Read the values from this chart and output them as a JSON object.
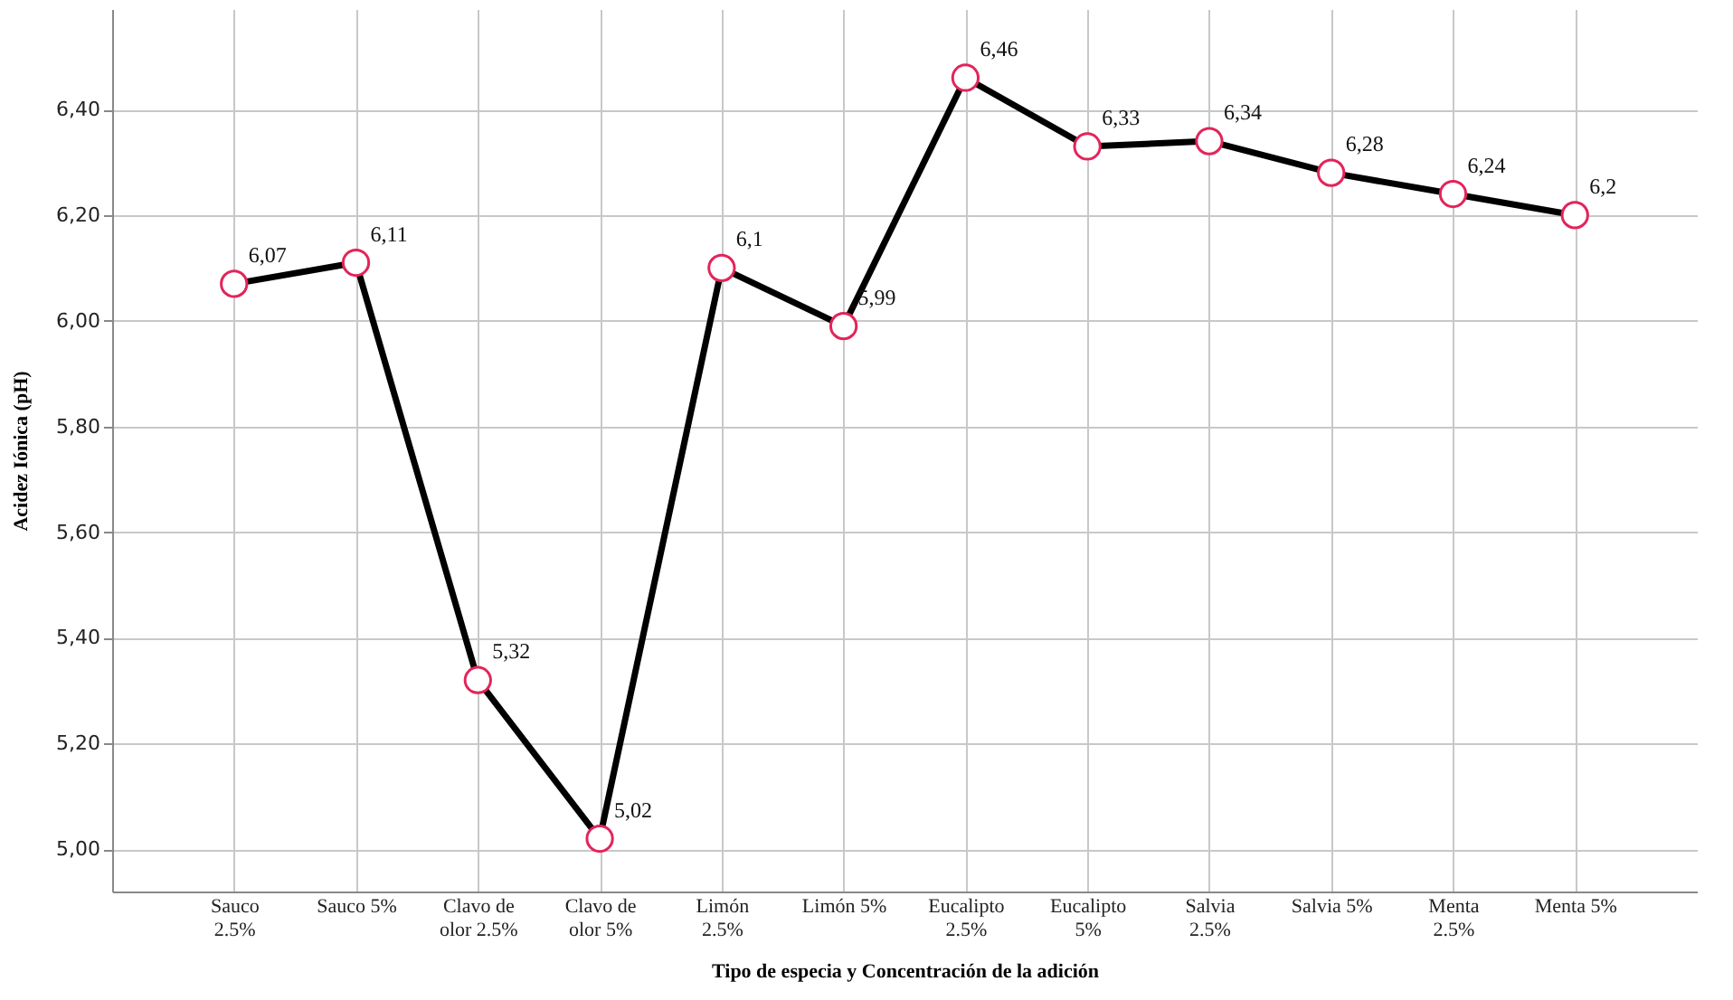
{
  "chart_data": {
    "type": "line",
    "xlabel": "Tipo de especia y Concentración de la adición",
    "ylabel": "Acidez Iónica (pH)",
    "categories": [
      "Sauco 2.5%",
      "Sauco 5%",
      "Clavo de olor 2.5%",
      "Clavo de olor 5%",
      "Limón 2.5%",
      "Limón 5%",
      "Eucalipto 2.5%",
      "Eucalipto 5%",
      "Salvia 2.5%",
      "Salvia 5%",
      "Menta 2.5%",
      "Menta 5%"
    ],
    "series": [
      {
        "color": "#000000",
        "values": [
          6.07,
          6.11,
          5.32,
          5.02,
          6.1,
          5.99,
          6.46,
          6.33,
          6.34,
          6.28,
          6.24,
          6.2
        ],
        "value_labels": [
          "6,07",
          "6,11",
          "5,32",
          "5,02",
          "6,1",
          "5,99",
          "6,46",
          "6,33",
          "6,34",
          "6,28",
          "6,24",
          "6,2"
        ]
      }
    ],
    "ylim": [
      4.92,
      6.59
    ],
    "yticks": [
      {
        "value": 5.0,
        "label": "5,00"
      },
      {
        "value": 5.2,
        "label": "5,20"
      },
      {
        "value": 5.4,
        "label": "5,40"
      },
      {
        "value": 5.6,
        "label": "5,60"
      },
      {
        "value": 5.8,
        "label": "5,80"
      },
      {
        "value": 6.0,
        "label": "6,00"
      },
      {
        "value": 6.2,
        "label": "6,20"
      },
      {
        "value": 6.4,
        "label": "6,40"
      }
    ],
    "grid": true,
    "marker": "circle",
    "line_style": "solid"
  }
}
